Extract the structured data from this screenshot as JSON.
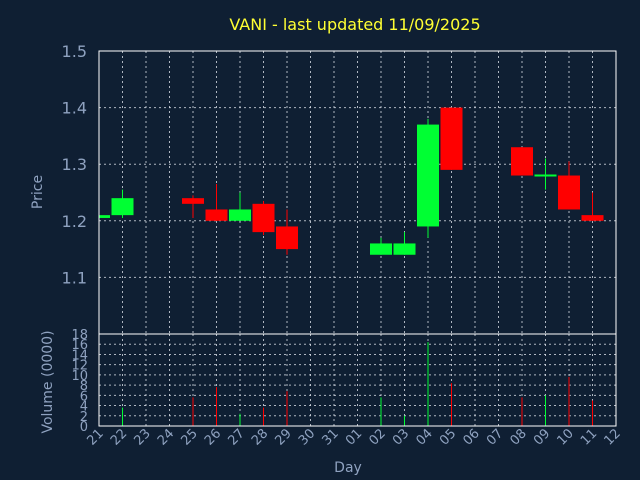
{
  "chart_data": [
    {
      "type": "candlestick",
      "title": "VANI - last updated 11/09/2025",
      "ylabel": "Price",
      "ylim": [
        1.0,
        1.5
      ],
      "yticks": [
        "1.1",
        "1.2",
        "1.3",
        "1.4",
        "1.5"
      ],
      "grid": true,
      "colors": {
        "up": "#00ff33",
        "down": "#ff0000",
        "background": "#0f1f33",
        "text": "#8fa2c0",
        "title": "#ffff33"
      },
      "candles": [
        {
          "day": "21",
          "open": 1.205,
          "close": 1.21,
          "high": 1.21,
          "low": 1.205
        },
        {
          "day": "22",
          "open": 1.21,
          "close": 1.24,
          "high": 1.255,
          "low": 1.205
        },
        {
          "day": "25",
          "open": 1.24,
          "close": 1.23,
          "high": 1.245,
          "low": 1.205
        },
        {
          "day": "26",
          "open": 1.22,
          "close": 1.2,
          "high": 1.265,
          "low": 1.2
        },
        {
          "day": "27",
          "open": 1.2,
          "close": 1.22,
          "high": 1.25,
          "low": 1.2
        },
        {
          "day": "28",
          "open": 1.23,
          "close": 1.18,
          "high": 1.235,
          "low": 1.175
        },
        {
          "day": "29",
          "open": 1.19,
          "close": 1.15,
          "high": 1.22,
          "low": 1.14
        },
        {
          "day": "02",
          "open": 1.14,
          "close": 1.16,
          "high": 1.17,
          "low": 1.14
        },
        {
          "day": "03",
          "open": 1.14,
          "close": 1.16,
          "high": 1.18,
          "low": 1.14
        },
        {
          "day": "04",
          "open": 1.19,
          "close": 1.37,
          "high": 1.38,
          "low": 1.17
        },
        {
          "day": "05",
          "open": 1.4,
          "close": 1.29,
          "high": 1.4,
          "low": 1.29
        },
        {
          "day": "08",
          "open": 1.33,
          "close": 1.28,
          "high": 1.33,
          "low": 1.28
        },
        {
          "day": "09",
          "open": 1.28,
          "close": 1.28,
          "high": 1.31,
          "low": 1.255
        },
        {
          "day": "10",
          "open": 1.28,
          "close": 1.22,
          "high": 1.305,
          "low": 1.22
        },
        {
          "day": "11",
          "open": 1.21,
          "close": 1.2,
          "high": 1.25,
          "low": 1.2
        }
      ]
    },
    {
      "type": "bar",
      "ylabel": "Volume (0000)",
      "xlabel": "Day",
      "ylim": [
        0,
        18
      ],
      "yticks": [
        "0",
        "2",
        "4",
        "6",
        "8",
        "10",
        "12",
        "14",
        "16",
        "18"
      ],
      "days": [
        "21",
        "22",
        "23",
        "24",
        "25",
        "26",
        "27",
        "28",
        "29",
        "30",
        "31",
        "01",
        "02",
        "03",
        "04",
        "05",
        "06",
        "07",
        "08",
        "09",
        "10",
        "11",
        "12"
      ],
      "volumes": [
        {
          "day": "22",
          "value": 3.6,
          "dir": "up"
        },
        {
          "day": "25",
          "value": 5.6,
          "dir": "down"
        },
        {
          "day": "26",
          "value": 7.6,
          "dir": "down"
        },
        {
          "day": "27",
          "value": 2.4,
          "dir": "up"
        },
        {
          "day": "28",
          "value": 3.6,
          "dir": "down"
        },
        {
          "day": "29",
          "value": 6.8,
          "dir": "down"
        },
        {
          "day": "02",
          "value": 5.6,
          "dir": "up"
        },
        {
          "day": "03",
          "value": 2.0,
          "dir": "up"
        },
        {
          "day": "04",
          "value": 16.4,
          "dir": "up"
        },
        {
          "day": "05",
          "value": 8.4,
          "dir": "down"
        },
        {
          "day": "08",
          "value": 5.6,
          "dir": "down"
        },
        {
          "day": "09",
          "value": 6.0,
          "dir": "up"
        },
        {
          "day": "10",
          "value": 9.6,
          "dir": "down"
        },
        {
          "day": "11",
          "value": 5.0,
          "dir": "down"
        }
      ]
    }
  ]
}
